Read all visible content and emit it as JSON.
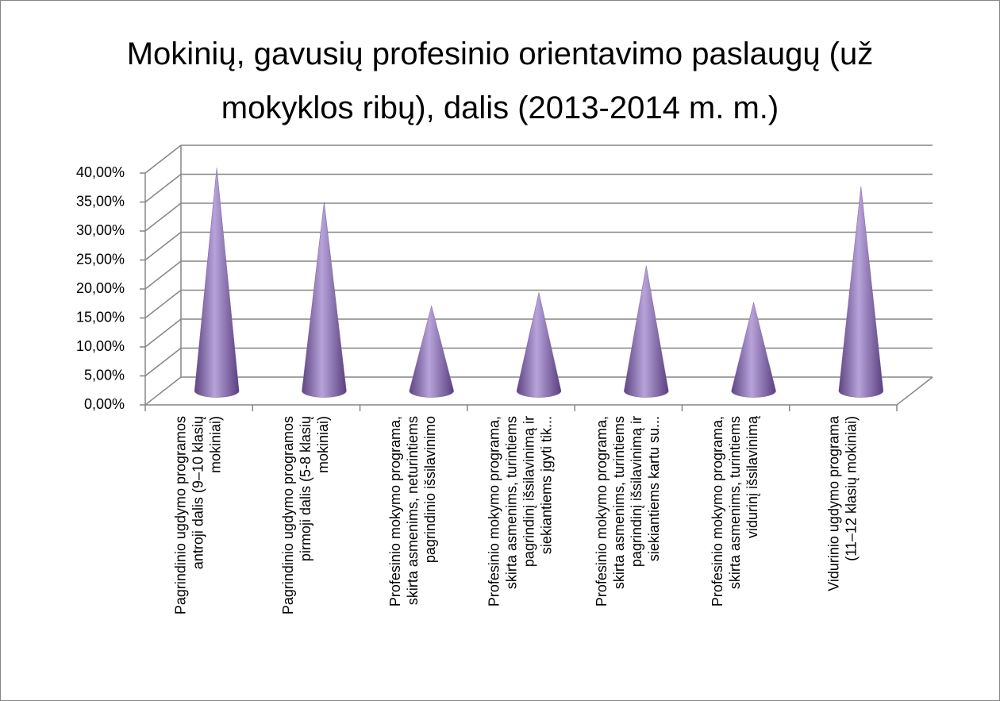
{
  "chart_data": {
    "type": "cone3d",
    "title": "Mokinių, gavusių profesinio orientavimo paslaugų (už mokyklos ribų), dalis (2013-2014 m. m.)",
    "categories": [
      [
        "Pagrindinio ugdymo programos",
        "antroji dalis (9–10 klasių",
        "mokiniai)"
      ],
      [
        "Pagrindinio ugdymo programos",
        "pirmoji dalis (5-8 klasių",
        "mokiniai)"
      ],
      [
        "Profesinio mokymo programa,",
        "skirta asmenims, neturintiems",
        "pagrindinio išsilavinimo"
      ],
      [
        "Profesinio mokymo programa,",
        "skirta asmenims, turintiems",
        "pagrindinį išsilavinimą ir",
        "siekiantiems įgyti tik..."
      ],
      [
        "Profesinio mokymo programa,",
        "skirta asmenims, turintiems",
        "pagrindinį išsilavinimą ir",
        "siekiantiems kartu su..."
      ],
      [
        "Profesinio mokymo programa,",
        "skirta asmenims, turintiems",
        "vidurinį išsilavinimą"
      ],
      [
        "Vidurinio ugdymo programa",
        "(11–12 klasių mokiniai)"
      ]
    ],
    "values": [
      38.5,
      32.6,
      14.7,
      17.0,
      21.6,
      15.3,
      35.3
    ],
    "color": "#8064a2",
    "ylim": [
      0,
      40
    ],
    "yticks": [
      {
        "value": 0,
        "label": "0,00%"
      },
      {
        "value": 5,
        "label": "5,00%"
      },
      {
        "value": 10,
        "label": "10,00%"
      },
      {
        "value": 15,
        "label": "15,00%"
      },
      {
        "value": 20,
        "label": "20,00%"
      },
      {
        "value": 25,
        "label": "25,00%"
      },
      {
        "value": 30,
        "label": "30,00%"
      },
      {
        "value": 35,
        "label": "35,00%"
      },
      {
        "value": 40,
        "label": "40,00%"
      }
    ],
    "grid": true
  }
}
